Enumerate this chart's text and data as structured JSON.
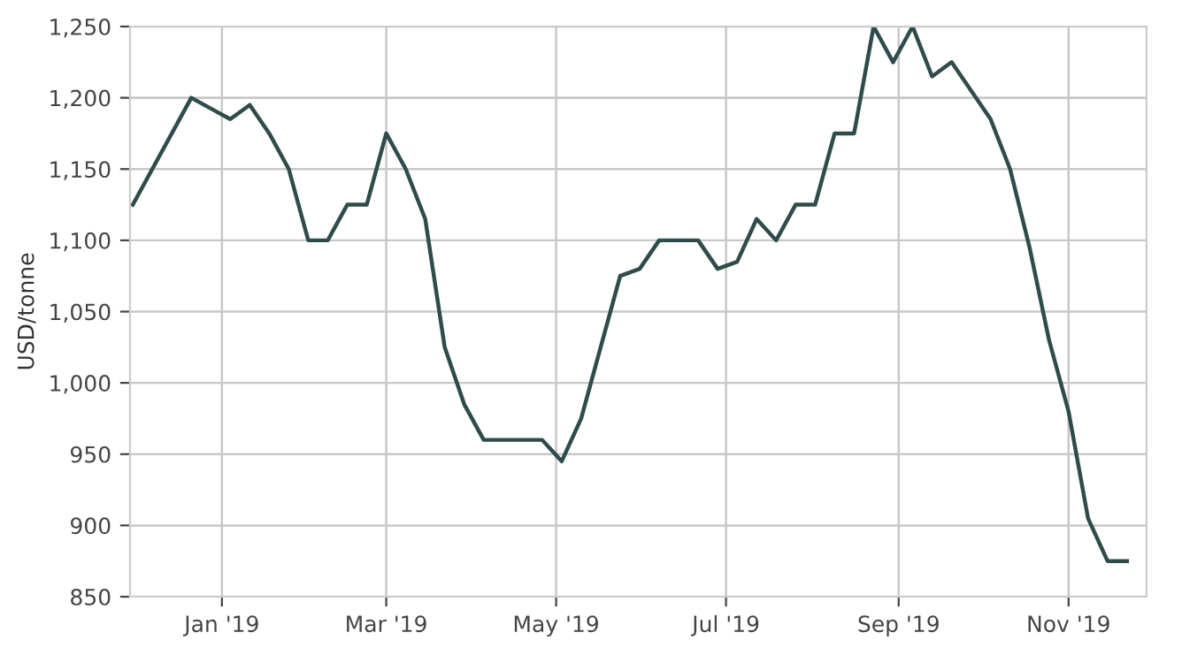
{
  "chart_data": {
    "type": "line",
    "ylabel": "USD/tonne",
    "x": [
      "2018-11-30",
      "2018-12-21",
      "2019-01-04",
      "2019-01-11",
      "2019-01-18",
      "2019-01-25",
      "2019-02-01",
      "2019-02-08",
      "2019-02-15",
      "2019-02-22",
      "2019-03-01",
      "2019-03-08",
      "2019-03-15",
      "2019-03-22",
      "2019-03-29",
      "2019-04-05",
      "2019-04-26",
      "2019-05-03",
      "2019-05-10",
      "2019-05-24",
      "2019-05-31",
      "2019-06-07",
      "2019-06-21",
      "2019-06-28",
      "2019-07-05",
      "2019-07-12",
      "2019-07-19",
      "2019-07-26",
      "2019-08-02",
      "2019-08-09",
      "2019-08-16",
      "2019-08-23",
      "2019-08-30",
      "2019-09-06",
      "2019-09-13",
      "2019-09-20",
      "2019-09-27",
      "2019-10-04",
      "2019-10-11",
      "2019-10-18",
      "2019-10-25",
      "2019-11-01",
      "2019-11-08",
      "2019-11-15",
      "2019-11-22"
    ],
    "series": [
      {
        "color": "#2f4b4c",
        "values": [
          1125,
          1200,
          1185,
          1195,
          1175,
          1150,
          1100,
          1100,
          1125,
          1125,
          1175,
          1150,
          1115,
          1025,
          985,
          960,
          960,
          945,
          975,
          1075,
          1080,
          1100,
          1100,
          1080,
          1085,
          1115,
          1100,
          1125,
          1125,
          1175,
          1175,
          1250,
          1225,
          1250,
          1215,
          1225,
          1205,
          1185,
          1150,
          1095,
          1030,
          980,
          905,
          875,
          875
        ]
      }
    ],
    "xlim": [
      "2018-11-29",
      "2019-11-29"
    ],
    "xticks": [
      {
        "value": "2019-01-01",
        "label": "Jan '19"
      },
      {
        "value": "2019-03-01",
        "label": "Mar '19"
      },
      {
        "value": "2019-05-01",
        "label": "May '19"
      },
      {
        "value": "2019-07-01",
        "label": "Jul '19"
      },
      {
        "value": "2019-09-01",
        "label": "Sep '19"
      },
      {
        "value": "2019-11-01",
        "label": "Nov '19"
      }
    ],
    "ylim": [
      850,
      1250
    ],
    "yticks": [
      850,
      900,
      950,
      {
        "value": 1000,
        "label": "1,000"
      },
      {
        "value": 1050,
        "label": "1,050"
      },
      {
        "value": 1100,
        "label": "1,100"
      },
      {
        "value": 1150,
        "label": "1,150"
      },
      {
        "value": 1200,
        "label": "1,200"
      },
      {
        "value": 1250,
        "label": "1,250"
      }
    ],
    "grid": true,
    "marker": "none",
    "line_style": "solid"
  }
}
